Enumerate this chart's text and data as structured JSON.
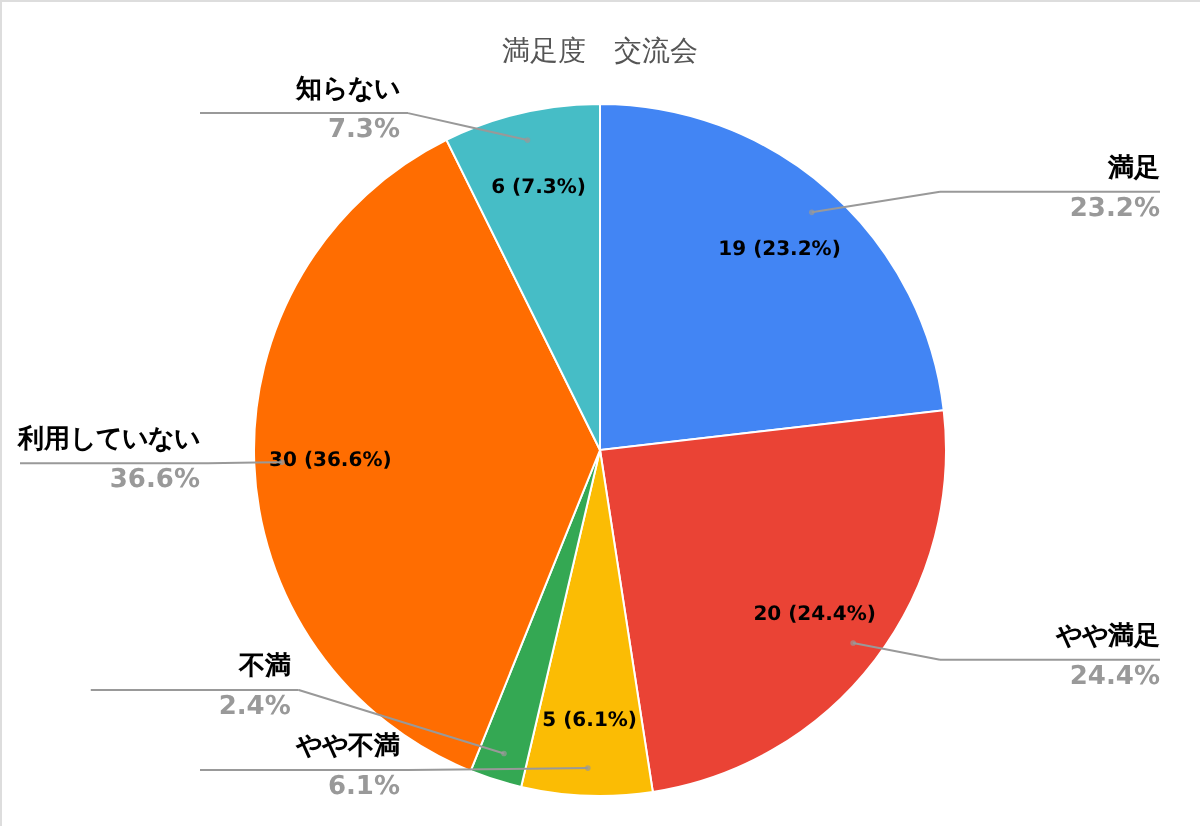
{
  "chart_data": {
    "type": "pie",
    "title": "満足度　交流会",
    "categories": [
      "満足",
      "やや満足",
      "やや不満",
      "不満",
      "利用していない",
      "知らない"
    ],
    "values": [
      19,
      20,
      5,
      2,
      30,
      6
    ],
    "colors": [
      "#4285f4",
      "#ea4335",
      "#fbbc04",
      "#34a853",
      "#ff6d01",
      "#46bdc6"
    ],
    "value_labels": [
      "19 (23.2%)",
      "20 (24.4%)",
      "5 (6.1%)",
      null,
      "30 (36.6%)",
      "6 (7.3%)"
    ],
    "annotations": [
      "23.2%",
      "24.4%",
      "6.1%",
      "2.4%",
      "36.6%",
      "7.3%"
    ]
  }
}
